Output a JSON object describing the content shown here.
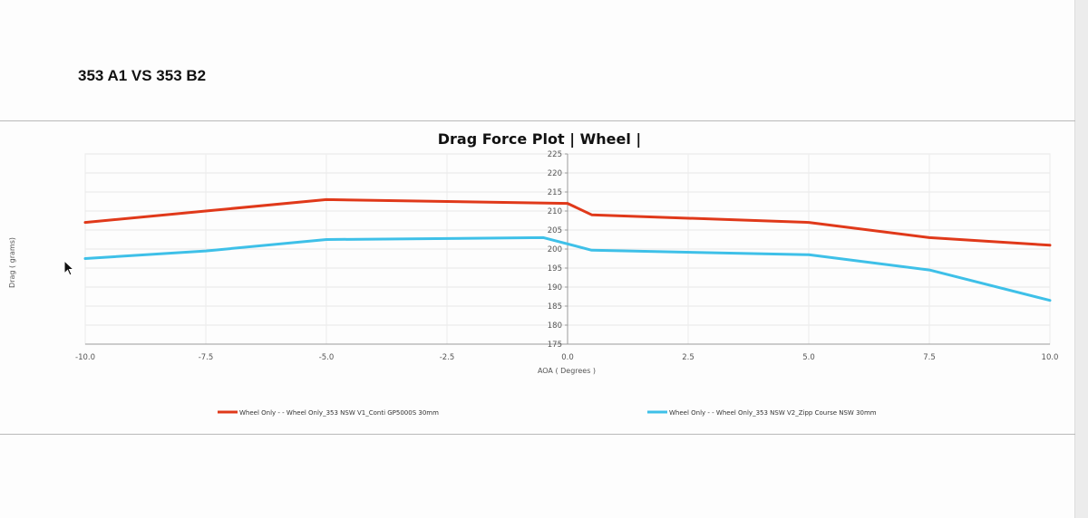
{
  "page": {
    "heading": "353 A1 VS 353 B2"
  },
  "chart_data": {
    "type": "line",
    "title": "Drag Force Plot | Wheel |",
    "xlabel": "AOA ( Degrees )",
    "ylabel": "Drag ( grams)",
    "xlim": [
      -10,
      10
    ],
    "ylim": [
      175,
      225
    ],
    "x_ticks": [
      -10,
      -7.5,
      -5,
      -2.5,
      0,
      2.5,
      5,
      7.5,
      10
    ],
    "x_tick_labels": [
      "-10.0",
      "-7.5",
      "-5.0",
      "-2.5",
      "0.0",
      "2.5",
      "5.0",
      "7.5",
      "10.0"
    ],
    "y_ticks": [
      175,
      180,
      185,
      190,
      195,
      200,
      205,
      210,
      215,
      220,
      225
    ],
    "y_tick_labels": [
      "175",
      "180",
      "185",
      "190",
      "195",
      "200",
      "205",
      "210",
      "215",
      "220",
      "225"
    ],
    "grid": true,
    "legend_position": "bottom",
    "series": [
      {
        "name": "Wheel Only - - Wheel Only_353 NSW V1_Conti GP5000S 30mm",
        "color": "#e0391a",
        "points": [
          [
            -10,
            207
          ],
          [
            -7.5,
            210
          ],
          [
            -5,
            213
          ],
          [
            0,
            212
          ],
          [
            0.5,
            209
          ],
          [
            5,
            207
          ],
          [
            7.5,
            203
          ],
          [
            10,
            201
          ]
        ]
      },
      {
        "name": "Wheel Only - - Wheel Only_353 NSW V2_Zipp Course NSW 30mm",
        "color": "#3ec0e8",
        "points": [
          [
            -10,
            197.5
          ],
          [
            -7.5,
            199.5
          ],
          [
            -5,
            202.5
          ],
          [
            -0.5,
            203
          ],
          [
            0.5,
            199.7
          ],
          [
            5,
            198.5
          ],
          [
            7.5,
            194.5
          ],
          [
            10,
            186.5
          ]
        ]
      }
    ]
  }
}
